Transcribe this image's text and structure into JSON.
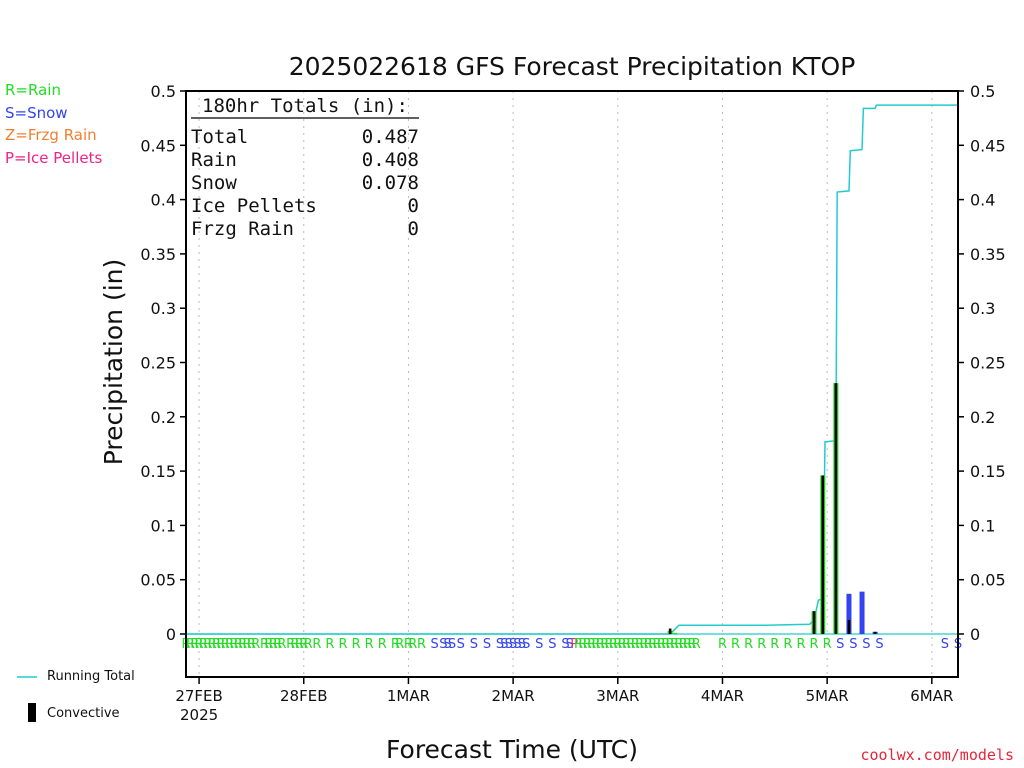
{
  "legend": {
    "types": [
      {
        "code": "R",
        "label": "R=Rain",
        "color": "#22dd22"
      },
      {
        "code": "S",
        "label": "S=Snow",
        "color": "#3344ee"
      },
      {
        "code": "Z",
        "label": "Z=Frzg Rain",
        "color": "#f08030"
      },
      {
        "code": "P",
        "label": "P=Ice Pellets",
        "color": "#ee2288"
      }
    ],
    "running_total_label": "Running Total",
    "convective_label": "Convective"
  },
  "source": "coolwx.com/models",
  "totals_box": {
    "header": "180hr Totals (in):",
    "rows": [
      {
        "label": "Total",
        "value": "0.487"
      },
      {
        "label": "Rain",
        "value": "0.408"
      },
      {
        "label": "Snow",
        "value": "0.078"
      },
      {
        "label": "Ice Pellets",
        "value": "0"
      },
      {
        "label": "Frzg Rain",
        "value": "0"
      }
    ]
  },
  "chart_data": {
    "type": "bar",
    "title": "2025022618 GFS Forecast Precipitation KTOP",
    "xlabel": "Forecast Time (UTC)",
    "ylabel": "Precipitation (in)",
    "ylim": [
      0,
      0.5
    ],
    "y_ticks": [
      "0",
      "0.05",
      "0.1",
      "0.15",
      "0.2",
      "0.25",
      "0.3",
      "0.35",
      "0.4",
      "0.45",
      "0.5"
    ],
    "x_range_hours_after_init": [
      3,
      180
    ],
    "x_ticks": [
      {
        "hour": 6,
        "label": "27FEB",
        "sublabel": "2025"
      },
      {
        "hour": 30,
        "label": "28FEB"
      },
      {
        "hour": 54,
        "label": "1MAR"
      },
      {
        "hour": 78,
        "label": "2MAR"
      },
      {
        "hour": 102,
        "label": "3MAR"
      },
      {
        "hour": 126,
        "label": "4MAR"
      },
      {
        "hour": 150,
        "label": "5MAR"
      },
      {
        "hour": 174,
        "label": "6MAR"
      }
    ],
    "grid": true,
    "series": [
      {
        "name": "Running Total",
        "type": "line",
        "color": "#22cccc",
        "points": [
          [
            3,
            0
          ],
          [
            114,
            0
          ],
          [
            115,
            0.004
          ],
          [
            116,
            0.008
          ],
          [
            136,
            0.008
          ],
          [
            146,
            0.009
          ],
          [
            147,
            0.013
          ],
          [
            148,
            0.031
          ],
          [
            149,
            0.033
          ],
          [
            149.5,
            0.177
          ],
          [
            152,
            0.178
          ],
          [
            152.3,
            0.407
          ],
          [
            155,
            0.408
          ],
          [
            155.3,
            0.445
          ],
          [
            158,
            0.446
          ],
          [
            158.3,
            0.484
          ],
          [
            161,
            0.484
          ],
          [
            161.3,
            0.487
          ],
          [
            180,
            0.487
          ]
        ]
      },
      {
        "name": "Precipitation",
        "type": "bar",
        "bars": [
          {
            "hour": 114,
            "value": 0.003,
            "color": "#22dd22"
          },
          {
            "hour": 115,
            "value": 0.001,
            "color": "#22dd22"
          },
          {
            "hour": 147,
            "value": 0.021,
            "color": "#22dd22"
          },
          {
            "hour": 149,
            "value": 0.146,
            "color": "#22dd22"
          },
          {
            "hour": 152,
            "value": 0.231,
            "color": "#22dd22"
          },
          {
            "hour": 155,
            "value": 0.037,
            "color": "#3344ee"
          },
          {
            "hour": 158,
            "value": 0.039,
            "color": "#3344ee"
          },
          {
            "hour": 161,
            "value": 0.002,
            "color": "#3344ee"
          }
        ]
      },
      {
        "name": "Convective",
        "type": "bar",
        "color": "#000000",
        "bars": [
          {
            "hour": 114,
            "value": 0.005
          },
          {
            "hour": 147,
            "value": 0.021
          },
          {
            "hour": 149,
            "value": 0.146
          },
          {
            "hour": 152,
            "value": 0.231
          },
          {
            "hour": 155,
            "value": 0.013
          },
          {
            "hour": 161,
            "value": 0.002
          }
        ]
      }
    ],
    "type_markers": [
      {
        "hour": 3,
        "type": "R"
      },
      {
        "hour": 4,
        "type": "R"
      },
      {
        "hour": 5,
        "type": "R"
      },
      {
        "hour": 6,
        "type": "R"
      },
      {
        "hour": 7,
        "type": "R"
      },
      {
        "hour": 8,
        "type": "R"
      },
      {
        "hour": 9,
        "type": "R"
      },
      {
        "hour": 10,
        "type": "R"
      },
      {
        "hour": 11,
        "type": "R"
      },
      {
        "hour": 12,
        "type": "R"
      },
      {
        "hour": 13,
        "type": "R"
      },
      {
        "hour": 14,
        "type": "R"
      },
      {
        "hour": 15,
        "type": "R"
      },
      {
        "hour": 16,
        "type": "R"
      },
      {
        "hour": 17,
        "type": "R"
      },
      {
        "hour": 18,
        "type": "R"
      },
      {
        "hour": 19,
        "type": "R"
      },
      {
        "hour": 21,
        "type": "R"
      },
      {
        "hour": 22,
        "type": "R"
      },
      {
        "hour": 23,
        "type": "R"
      },
      {
        "hour": 24,
        "type": "R"
      },
      {
        "hour": 25,
        "type": "R"
      },
      {
        "hour": 27,
        "type": "R"
      },
      {
        "hour": 28,
        "type": "R"
      },
      {
        "hour": 29,
        "type": "R"
      },
      {
        "hour": 30,
        "type": "R"
      },
      {
        "hour": 31,
        "type": "R"
      },
      {
        "hour": 33,
        "type": "R"
      },
      {
        "hour": 36,
        "type": "R"
      },
      {
        "hour": 39,
        "type": "R"
      },
      {
        "hour": 42,
        "type": "R"
      },
      {
        "hour": 45,
        "type": "R"
      },
      {
        "hour": 48,
        "type": "R"
      },
      {
        "hour": 51,
        "type": "R"
      },
      {
        "hour": 52,
        "type": "R"
      },
      {
        "hour": 54,
        "type": "R"
      },
      {
        "hour": 55,
        "type": "R"
      },
      {
        "hour": 57,
        "type": "R"
      },
      {
        "hour": 60,
        "type": "S"
      },
      {
        "hour": 62,
        "type": "S"
      },
      {
        "hour": 63,
        "type": "S"
      },
      {
        "hour": 64,
        "type": "S"
      },
      {
        "hour": 66,
        "type": "S"
      },
      {
        "hour": 69,
        "type": "S"
      },
      {
        "hour": 72,
        "type": "S"
      },
      {
        "hour": 75,
        "type": "S"
      },
      {
        "hour": 76,
        "type": "S"
      },
      {
        "hour": 77,
        "type": "S"
      },
      {
        "hour": 78,
        "type": "S"
      },
      {
        "hour": 79,
        "type": "S"
      },
      {
        "hour": 80,
        "type": "S"
      },
      {
        "hour": 81,
        "type": "S"
      },
      {
        "hour": 84,
        "type": "S"
      },
      {
        "hour": 87,
        "type": "S"
      },
      {
        "hour": 90,
        "type": "S"
      },
      {
        "hour": 91,
        "type": "S"
      },
      {
        "hour": 92,
        "type": "P"
      },
      {
        "hour": 93,
        "type": "R"
      },
      {
        "hour": 94,
        "type": "R"
      },
      {
        "hour": 95,
        "type": "R"
      },
      {
        "hour": 96,
        "type": "R"
      },
      {
        "hour": 97,
        "type": "R"
      },
      {
        "hour": 98,
        "type": "R"
      },
      {
        "hour": 99,
        "type": "R"
      },
      {
        "hour": 100,
        "type": "R"
      },
      {
        "hour": 101,
        "type": "R"
      },
      {
        "hour": 102,
        "type": "R"
      },
      {
        "hour": 103,
        "type": "R"
      },
      {
        "hour": 104,
        "type": "R"
      },
      {
        "hour": 105,
        "type": "R"
      },
      {
        "hour": 106,
        "type": "R"
      },
      {
        "hour": 107,
        "type": "R"
      },
      {
        "hour": 108,
        "type": "R"
      },
      {
        "hour": 109,
        "type": "R"
      },
      {
        "hour": 110,
        "type": "R"
      },
      {
        "hour": 111,
        "type": "R"
      },
      {
        "hour": 112,
        "type": "R"
      },
      {
        "hour": 113,
        "type": "R"
      },
      {
        "hour": 114,
        "type": "R"
      },
      {
        "hour": 115,
        "type": "R"
      },
      {
        "hour": 116,
        "type": "R"
      },
      {
        "hour": 117,
        "type": "R"
      },
      {
        "hour": 118,
        "type": "R"
      },
      {
        "hour": 119,
        "type": "R"
      },
      {
        "hour": 120,
        "type": "R"
      },
      {
        "hour": 126,
        "type": "R"
      },
      {
        "hour": 129,
        "type": "R"
      },
      {
        "hour": 132,
        "type": "R"
      },
      {
        "hour": 135,
        "type": "R"
      },
      {
        "hour": 138,
        "type": "R"
      },
      {
        "hour": 141,
        "type": "R"
      },
      {
        "hour": 144,
        "type": "R"
      },
      {
        "hour": 147,
        "type": "R"
      },
      {
        "hour": 150,
        "type": "R"
      },
      {
        "hour": 153,
        "type": "S"
      },
      {
        "hour": 156,
        "type": "S"
      },
      {
        "hour": 159,
        "type": "S"
      },
      {
        "hour": 162,
        "type": "S"
      },
      {
        "hour": 177,
        "type": "S"
      },
      {
        "hour": 180,
        "type": "S"
      }
    ]
  }
}
